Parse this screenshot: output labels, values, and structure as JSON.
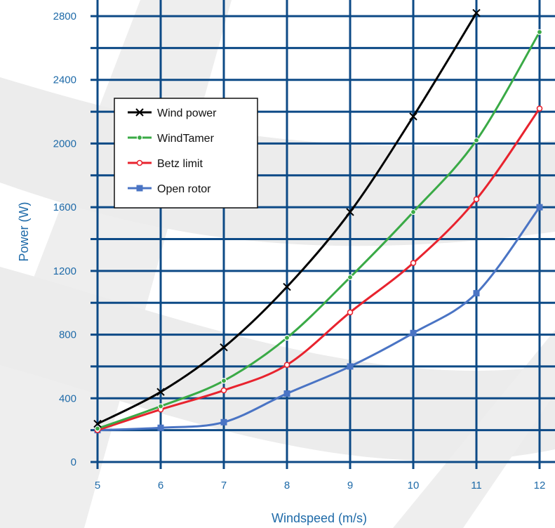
{
  "chart_data": {
    "type": "line",
    "title": "",
    "xlabel": "Windspeed (m/s)",
    "ylabel": "Power (W)",
    "x": [
      5,
      6,
      7,
      8,
      9,
      10,
      11,
      12
    ],
    "xlim": [
      5,
      12
    ],
    "ylim": [
      0,
      2800
    ],
    "x_ticks": [
      "5",
      "6",
      "7",
      "8",
      "9",
      "10",
      "11",
      "12"
    ],
    "y_ticks": [
      "0",
      "400",
      "800",
      "1200",
      "1600",
      "2000",
      "2400",
      "2800"
    ],
    "grid": true,
    "legend_position": "upper-left",
    "series": [
      {
        "name": "Wind power",
        "color": "#000000",
        "marker": "x",
        "values": [
          240,
          440,
          720,
          1100,
          1570,
          2170,
          2820,
          null
        ]
      },
      {
        "name": "WindTamer",
        "color": "#3aaa46",
        "marker": "circle",
        "values": [
          210,
          350,
          510,
          780,
          1160,
          1570,
          2020,
          2700
        ]
      },
      {
        "name": "Betz limit",
        "color": "#e8232e",
        "marker": "open-circle",
        "values": [
          200,
          330,
          450,
          610,
          940,
          1250,
          1650,
          2220
        ]
      },
      {
        "name": "Open rotor",
        "color": "#4a74c4",
        "marker": "square",
        "values": [
          200,
          215,
          250,
          430,
          600,
          810,
          1060,
          1600
        ]
      }
    ]
  },
  "colors": {
    "grid": "#0d4a86",
    "text": "#1e6aa8",
    "watermark": "#ebebeb"
  }
}
